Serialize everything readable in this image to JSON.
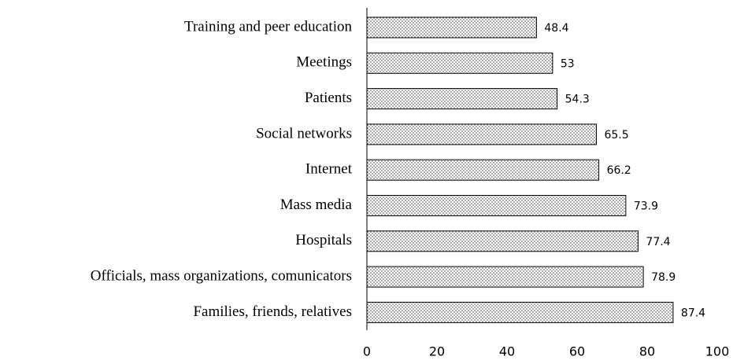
{
  "chart_data": {
    "type": "bar",
    "orientation": "horizontal",
    "categories": [
      "Training and peer education",
      "Meetings",
      "Patients",
      "Social networks",
      "Internet",
      "Mass media",
      "Hospitals",
      "Officials, mass organizations, comunicators",
      "Families, friends, relatives"
    ],
    "values": [
      48.4,
      53,
      54.3,
      65.5,
      66.2,
      73.9,
      77.4,
      78.9,
      87.4
    ],
    "color": "#000000",
    "xlim": [
      0,
      100
    ],
    "xticks": [
      0,
      20,
      40,
      60,
      80,
      100
    ],
    "grid": false
  }
}
